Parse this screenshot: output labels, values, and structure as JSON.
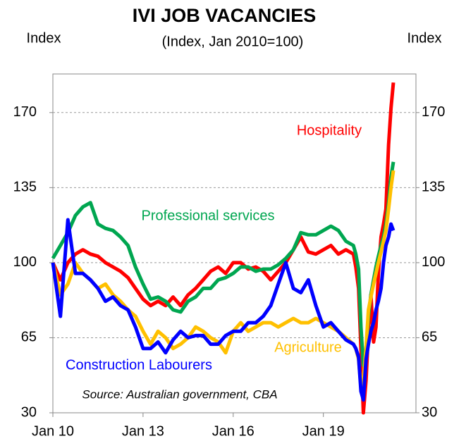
{
  "chart_data": {
    "type": "line",
    "title": "IVI JOB VACANCIES",
    "subtitle": "(Index, Jan 2010=100)",
    "y_label": "Index",
    "y2_label": "Index",
    "source": "Source: Australian government, CBA",
    "x": [
      2010,
      2010.25,
      2010.5,
      2010.75,
      2011,
      2011.25,
      2011.5,
      2011.75,
      2012,
      2012.25,
      2012.5,
      2012.75,
      2013,
      2013.25,
      2013.5,
      2013.75,
      2014,
      2014.25,
      2014.5,
      2014.75,
      2015,
      2015.25,
      2015.5,
      2015.75,
      2016,
      2016.25,
      2016.5,
      2016.75,
      2017,
      2017.25,
      2017.5,
      2017.75,
      2018,
      2018.25,
      2018.5,
      2018.75,
      2019,
      2019.25,
      2019.5,
      2019.75,
      2020,
      2020.08,
      2020.17,
      2020.25,
      2020.33,
      2020.42,
      2020.5,
      2020.58,
      2020.67,
      2020.75,
      2020.83,
      2020.92,
      2021,
      2021.08,
      2021.17,
      2021.25,
      2021.33
    ],
    "xlim": [
      2010,
      2022.08
    ],
    "xticks": [
      {
        "value": 2010,
        "label": "Jan 10"
      },
      {
        "value": 2013,
        "label": "Jan 13"
      },
      {
        "value": 2016,
        "label": "Jan 16"
      },
      {
        "value": 2019,
        "label": "Jan 19"
      }
    ],
    "ylim": [
      30,
      188
    ],
    "yticks": [
      30,
      65,
      100,
      135,
      170
    ],
    "y2lim": [
      30,
      188
    ],
    "y2ticks": [
      30,
      65,
      100,
      135,
      170
    ],
    "grid": true,
    "series": [
      {
        "name": "Hospitality",
        "color": "#ff0000",
        "values": [
          100,
          92,
          100,
          104,
          106,
          104,
          103,
          100,
          98,
          96,
          93,
          88,
          83,
          80,
          82,
          80,
          84,
          80,
          85,
          88,
          92,
          96,
          98,
          95,
          100,
          100,
          97,
          98,
          96,
          92,
          96,
          100,
          106,
          112,
          105,
          104,
          106,
          108,
          104,
          106,
          104,
          98,
          88,
          60,
          30,
          45,
          68,
          85,
          63,
          70,
          95,
          112,
          118,
          125,
          155,
          172,
          184
        ]
      },
      {
        "name": "Professional services",
        "color": "#00a650",
        "values": [
          102,
          108,
          114,
          122,
          126,
          128,
          118,
          116,
          115,
          112,
          108,
          98,
          90,
          83,
          84,
          82,
          78,
          77,
          82,
          84,
          88,
          88,
          92,
          93,
          95,
          98,
          98,
          96,
          97,
          97,
          99,
          102,
          106,
          114,
          113,
          113,
          115,
          117,
          115,
          110,
          108,
          104,
          97,
          70,
          52,
          60,
          75,
          85,
          92,
          98,
          103,
          108,
          112,
          118,
          128,
          140,
          147
        ]
      },
      {
        "name": "Agriculture",
        "color": "#ffc000",
        "values": [
          100,
          85,
          90,
          100,
          95,
          92,
          88,
          90,
          85,
          82,
          78,
          75,
          68,
          62,
          68,
          65,
          60,
          62,
          65,
          70,
          68,
          65,
          63,
          58,
          68,
          72,
          68,
          70,
          72,
          72,
          70,
          72,
          74,
          72,
          72,
          74,
          72,
          70,
          68,
          65,
          62,
          60,
          55,
          42,
          46,
          60,
          78,
          84,
          90,
          95,
          100,
          105,
          110,
          115,
          125,
          135,
          143
        ]
      },
      {
        "name": "Construction Labourers",
        "color": "#0000ff",
        "values": [
          100,
          75,
          120,
          95,
          95,
          92,
          88,
          82,
          84,
          80,
          78,
          70,
          60,
          60,
          63,
          58,
          64,
          68,
          65,
          66,
          66,
          62,
          62,
          66,
          68,
          68,
          72,
          72,
          75,
          80,
          90,
          100,
          88,
          86,
          92,
          80,
          70,
          72,
          68,
          64,
          62,
          60,
          56,
          40,
          36,
          55,
          62,
          68,
          72,
          78,
          82,
          88,
          100,
          108,
          112,
          118,
          115
        ]
      }
    ]
  }
}
